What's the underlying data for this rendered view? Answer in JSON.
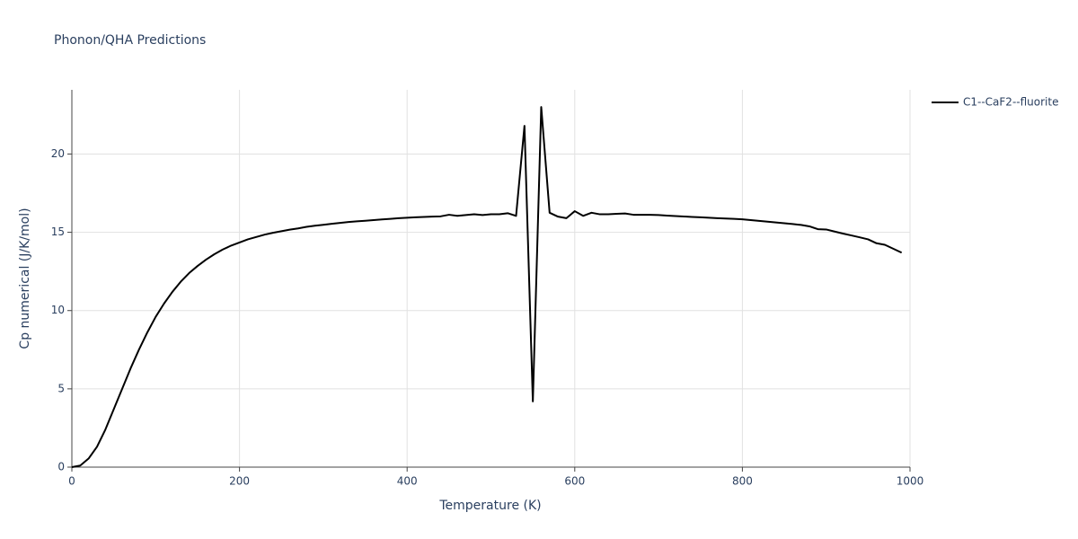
{
  "chart_data": {
    "type": "line",
    "title": "Phonon/QHA Predictions",
    "x_label": "Temperature (K)",
    "y_label": "Cp numerical (J/K/mol)",
    "x": [
      0,
      10,
      20,
      30,
      40,
      50,
      60,
      70,
      80,
      90,
      100,
      110,
      120,
      130,
      140,
      150,
      160,
      170,
      180,
      190,
      200,
      210,
      220,
      230,
      240,
      250,
      260,
      270,
      280,
      290,
      300,
      310,
      320,
      330,
      340,
      350,
      360,
      370,
      380,
      390,
      400,
      410,
      420,
      430,
      440,
      450,
      460,
      470,
      480,
      490,
      500,
      510,
      520,
      530,
      540,
      550,
      560,
      570,
      580,
      590,
      600,
      610,
      620,
      630,
      640,
      650,
      660,
      670,
      680,
      690,
      700,
      710,
      720,
      730,
      740,
      750,
      760,
      770,
      780,
      790,
      800,
      810,
      820,
      830,
      840,
      850,
      860,
      870,
      880,
      890,
      900,
      910,
      920,
      930,
      940,
      950,
      960,
      970,
      980,
      990
    ],
    "series": [
      {
        "name": "C1--CaF2--fluorite",
        "color": "#000000",
        "values": [
          0,
          0.1,
          0.55,
          1.3,
          2.4,
          3.7,
          5.0,
          6.3,
          7.5,
          8.6,
          9.6,
          10.45,
          11.2,
          11.85,
          12.4,
          12.85,
          13.25,
          13.6,
          13.9,
          14.15,
          14.35,
          14.55,
          14.7,
          14.85,
          14.97,
          15.07,
          15.17,
          15.25,
          15.35,
          15.42,
          15.48,
          15.54,
          15.6,
          15.66,
          15.7,
          15.74,
          15.78,
          15.82,
          15.86,
          15.9,
          15.93,
          15.96,
          15.98,
          16.0,
          16.02,
          16.12,
          16.05,
          16.1,
          16.15,
          16.1,
          16.15,
          16.15,
          16.22,
          16.05,
          21.8,
          4.2,
          23.0,
          16.25,
          16.0,
          15.9,
          16.35,
          16.05,
          16.25,
          16.15,
          16.15,
          16.18,
          16.2,
          16.12,
          16.12,
          16.12,
          16.1,
          16.07,
          16.04,
          16.01,
          15.98,
          15.96,
          15.93,
          15.9,
          15.88,
          15.86,
          15.83,
          15.78,
          15.73,
          15.68,
          15.63,
          15.58,
          15.53,
          15.47,
          15.38,
          15.2,
          15.18,
          15.05,
          14.92,
          14.8,
          14.68,
          14.55,
          14.3,
          14.2,
          13.95,
          13.7
        ]
      }
    ],
    "xlim": [
      0,
      1000
    ],
    "ylim": [
      0,
      24.1
    ],
    "xticks": [
      0,
      200,
      400,
      600,
      800,
      1000
    ],
    "yticks": [
      0,
      5,
      10,
      15,
      20
    ],
    "grid": true,
    "legend": "right"
  }
}
